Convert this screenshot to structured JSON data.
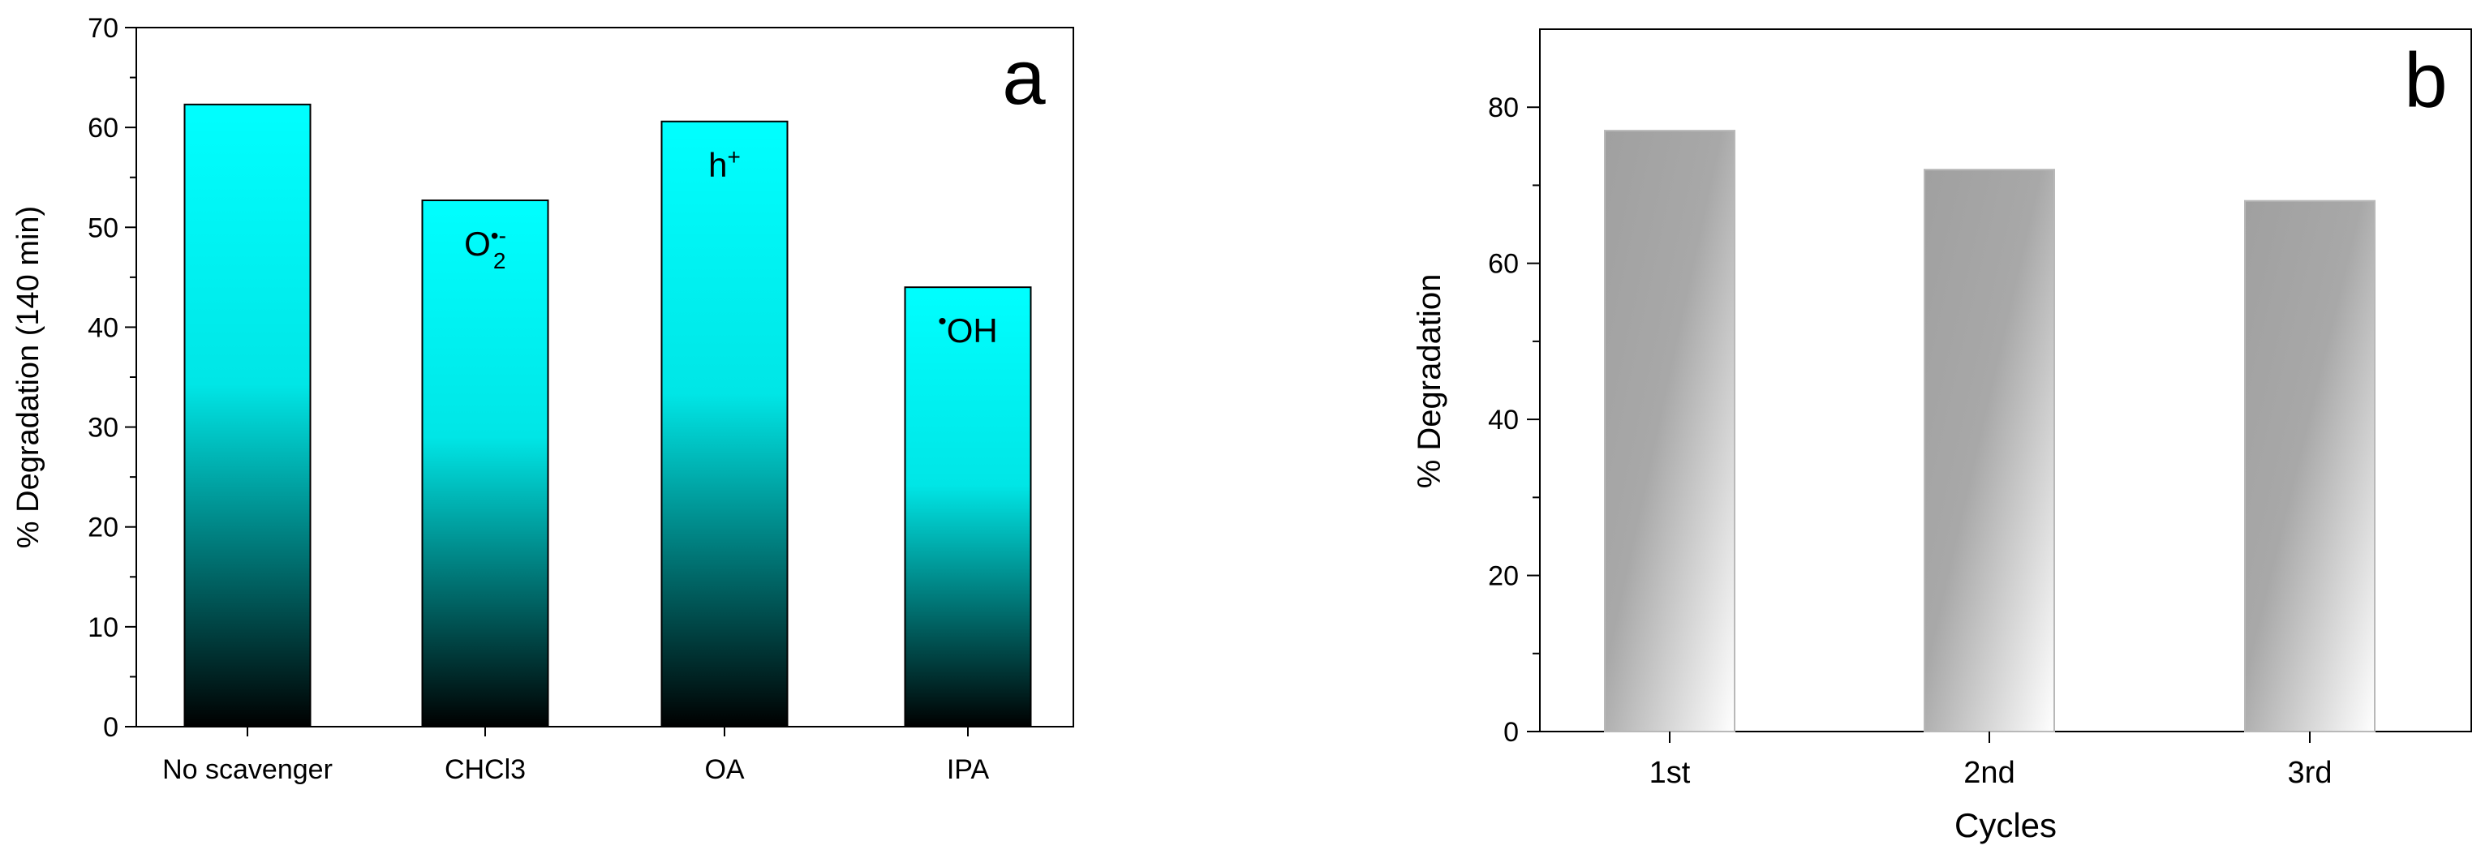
{
  "chart_data": [
    {
      "type": "bar",
      "panel_label": "a",
      "categories": [
        "No scavenger",
        "CHCl3",
        "OA",
        "IPA"
      ],
      "values": [
        62.3,
        52.7,
        60.6,
        44.0
      ],
      "annotations": [
        {
          "category": "CHCl3",
          "text": "O",
          "sup": "•-",
          "sub": "2"
        },
        {
          "category": "OA",
          "text": "h",
          "sup": "+",
          "sub": ""
        },
        {
          "category": "IPA",
          "pre": "•",
          "text": "OH",
          "sup": "",
          "sub": ""
        }
      ],
      "ylabel": "% Degradation (140 min)",
      "xlabel": "",
      "ylim": [
        0,
        70
      ],
      "yticks": [
        0,
        10,
        20,
        30,
        40,
        50,
        60,
        70
      ],
      "bar_gradient": [
        "#00ffff",
        "#000000"
      ]
    },
    {
      "type": "bar",
      "panel_label": "b",
      "categories": [
        "1st",
        "2nd",
        "3rd"
      ],
      "values": [
        77,
        72,
        68
      ],
      "ylabel": "% Degradation",
      "xlabel": "Cycles",
      "ylim": [
        0,
        90
      ],
      "yticks": [
        0,
        20,
        40,
        60,
        80
      ],
      "bar_gradient": [
        "#a0a0a0",
        "#ffffff"
      ]
    }
  ]
}
